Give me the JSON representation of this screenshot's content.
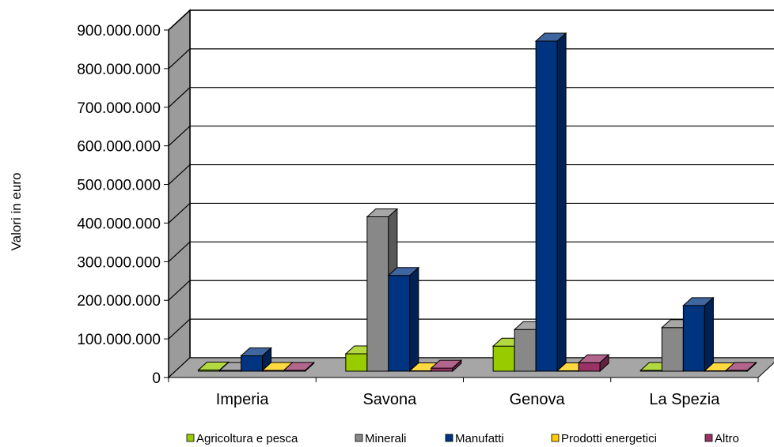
{
  "chart_data": {
    "type": "bar",
    "style": "3d-clustered-column",
    "ylabel": "Valori in euro",
    "xlabel": "",
    "ylim": [
      0,
      900000000
    ],
    "y_ticks": [
      "0",
      "100.000.000",
      "200.000.000",
      "300.000.000",
      "400.000.000",
      "500.000.000",
      "600.000.000",
      "700.000.000",
      "800.000.000",
      "900.000.000"
    ],
    "grid": true,
    "legend_position": "bottom",
    "categories": [
      "Imperia",
      "Savona",
      "Genova",
      "La Spezia"
    ],
    "series": [
      {
        "name": "Agricoltura e pesca",
        "color": "#99cc00",
        "values": [
          3000000,
          45000000,
          65000000,
          2000000
        ]
      },
      {
        "name": "Minerali",
        "color": "#888888",
        "values": [
          2000000,
          400000000,
          108000000,
          113000000
        ]
      },
      {
        "name": "Manufatti",
        "color": "#003380",
        "values": [
          40000000,
          248000000,
          855000000,
          170000000
        ]
      },
      {
        "name": "Prodotti energetici",
        "color": "#ffcc00",
        "values": [
          2000000,
          1000000,
          1000000,
          1000000
        ]
      },
      {
        "name": "Altro",
        "color": "#993366",
        "values": [
          2000000,
          8000000,
          22000000,
          2000000
        ]
      }
    ]
  }
}
